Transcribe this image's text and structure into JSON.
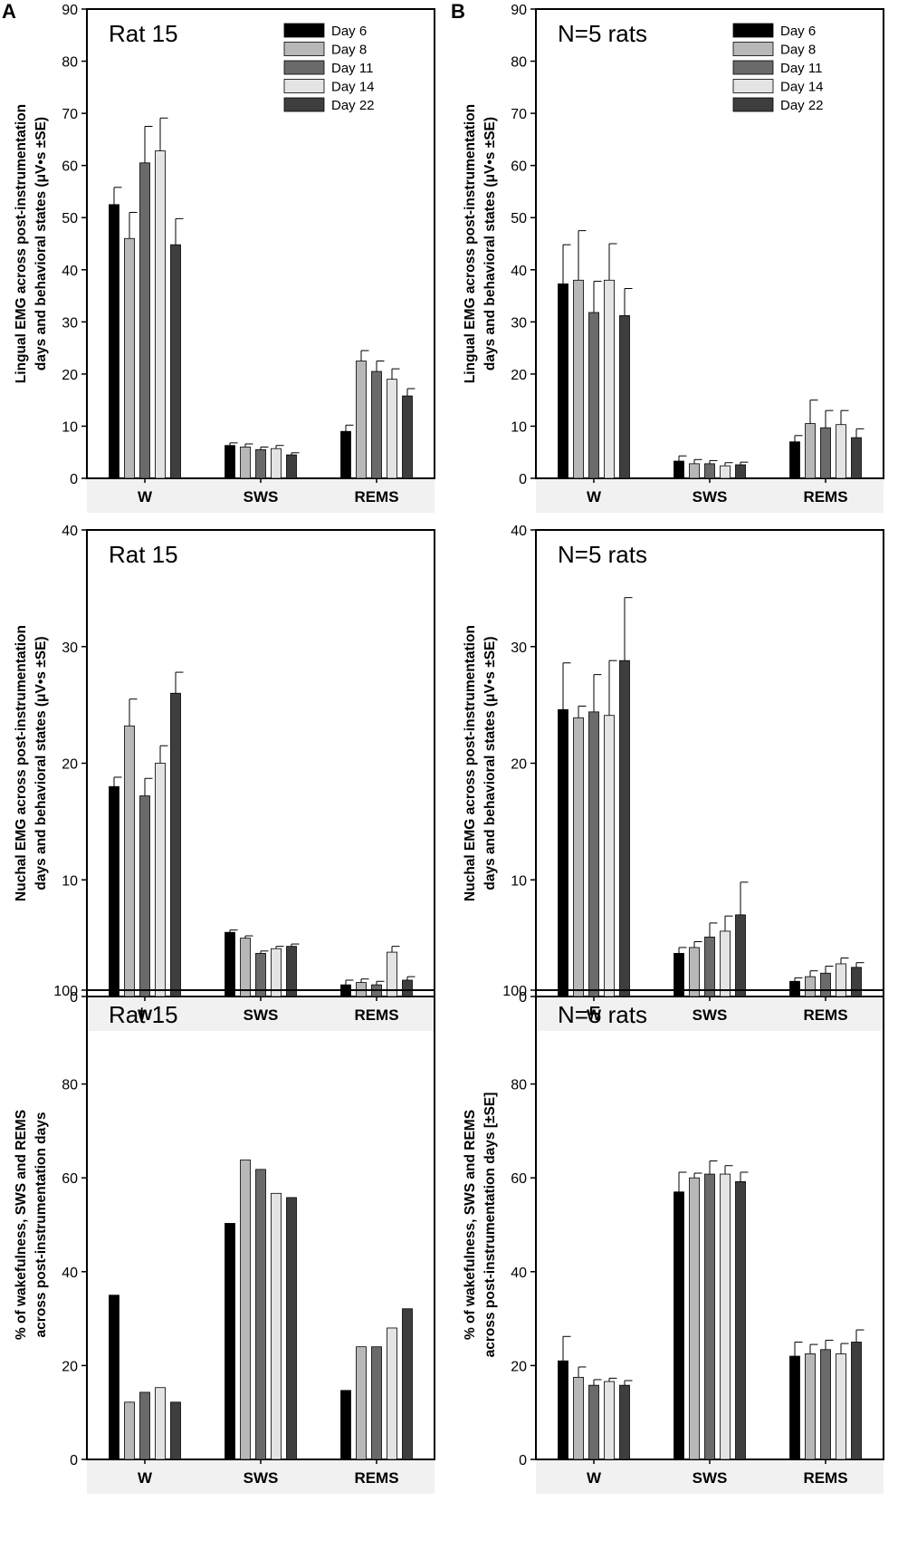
{
  "panel_letters": [
    "A",
    "B"
  ],
  "legend": {
    "entries": [
      "Day 6",
      "Day 8",
      "Day 11",
      "Day 14",
      "Day 22"
    ],
    "colors": [
      "#000000",
      "#b8b8b8",
      "#6a6a6a",
      "#e4e4e4",
      "#3e3e3e"
    ]
  },
  "chart_data": [
    {
      "type": "bar",
      "id": "lingual-rat15",
      "title": "Rat 15",
      "ylabel_line1": "Lingual EMG across post-instrumentation",
      "ylabel_line2": "days and behavioral states (μV•s ±SE)",
      "categories": [
        "W",
        "SWS",
        "REMS"
      ],
      "ylim": [
        0,
        90
      ],
      "yticks": [
        0,
        10,
        20,
        30,
        40,
        50,
        60,
        70,
        80,
        90
      ],
      "legend": true,
      "series": [
        {
          "name": "Day 6",
          "values": [
            52.5,
            6.3,
            9.0
          ],
          "err": [
            3.3,
            0.5,
            1.2
          ]
        },
        {
          "name": "Day 8",
          "values": [
            46.0,
            6.0,
            22.5
          ],
          "err": [
            5.0,
            0.6,
            2.0
          ]
        },
        {
          "name": "Day 11",
          "values": [
            60.5,
            5.5,
            20.5
          ],
          "err": [
            7.0,
            0.5,
            2.0
          ]
        },
        {
          "name": "Day 14",
          "values": [
            62.8,
            5.7,
            19.0
          ],
          "err": [
            6.3,
            0.6,
            2.0
          ]
        },
        {
          "name": "Day 22",
          "values": [
            44.8,
            4.5,
            15.8
          ],
          "err": [
            5.0,
            0.4,
            1.4
          ]
        }
      ]
    },
    {
      "type": "bar",
      "id": "lingual-n5",
      "title": "N=5 rats",
      "ylabel_line1": "Lingual EMG across post-instrumentation",
      "ylabel_line2": "days and behavioral states (μV•s ±SE)",
      "categories": [
        "W",
        "SWS",
        "REMS"
      ],
      "ylim": [
        0,
        90
      ],
      "yticks": [
        0,
        10,
        20,
        30,
        40,
        50,
        60,
        70,
        80,
        90
      ],
      "legend": true,
      "series": [
        {
          "name": "Day 6",
          "values": [
            37.3,
            3.3,
            7.0
          ],
          "err": [
            7.5,
            1.0,
            1.2
          ]
        },
        {
          "name": "Day 8",
          "values": [
            38.0,
            2.8,
            10.5
          ],
          "err": [
            9.5,
            0.8,
            4.5
          ]
        },
        {
          "name": "Day 11",
          "values": [
            31.8,
            2.8,
            9.7
          ],
          "err": [
            6.0,
            0.6,
            3.3
          ]
        },
        {
          "name": "Day 14",
          "values": [
            38.0,
            2.4,
            10.3
          ],
          "err": [
            7.0,
            0.6,
            2.7
          ]
        },
        {
          "name": "Day 22",
          "values": [
            31.2,
            2.6,
            7.8
          ],
          "err": [
            5.2,
            0.5,
            1.7
          ]
        }
      ]
    },
    {
      "type": "bar",
      "id": "nuchal-rat15",
      "title": "Rat 15",
      "ylabel_line1": "Nuchal EMG across post-instrumentation",
      "ylabel_line2": "days and behavioral states (μV•s ±SE)",
      "categories": [
        "W",
        "SWS",
        "REMS"
      ],
      "ylim": [
        0,
        40
      ],
      "yticks": [
        0,
        10,
        20,
        30,
        40
      ],
      "legend": false,
      "series": [
        {
          "name": "Day 6",
          "values": [
            18.0,
            5.5,
            1.0
          ],
          "err": [
            0.8,
            0.2,
            0.4
          ]
        },
        {
          "name": "Day 8",
          "values": [
            23.2,
            5.0,
            1.2
          ],
          "err": [
            2.3,
            0.2,
            0.3
          ]
        },
        {
          "name": "Day 11",
          "values": [
            17.2,
            3.7,
            1.0
          ],
          "err": [
            1.5,
            0.2,
            0.3
          ]
        },
        {
          "name": "Day 14",
          "values": [
            20.0,
            4.1,
            3.8
          ],
          "err": [
            1.5,
            0.2,
            0.5
          ]
        },
        {
          "name": "Day 22",
          "values": [
            26.0,
            4.3,
            1.4
          ],
          "err": [
            1.8,
            0.2,
            0.3
          ]
        }
      ]
    },
    {
      "type": "bar",
      "id": "nuchal-n5",
      "title": "N=5 rats",
      "ylabel_line1": "Nuchal EMG across post-instrumentation",
      "ylabel_line2": "days and behavioral states (μV•s ±SE)",
      "categories": [
        "W",
        "SWS",
        "REMS"
      ],
      "ylim": [
        0,
        40
      ],
      "yticks": [
        0,
        10,
        20,
        30,
        40
      ],
      "legend": false,
      "series": [
        {
          "name": "Day 6",
          "values": [
            24.6,
            3.7,
            1.3
          ],
          "err": [
            4.0,
            0.5,
            0.3
          ]
        },
        {
          "name": "Day 8",
          "values": [
            23.9,
            4.2,
            1.7
          ],
          "err": [
            1.0,
            0.5,
            0.5
          ]
        },
        {
          "name": "Day 11",
          "values": [
            24.4,
            5.1,
            2.0
          ],
          "err": [
            3.2,
            1.2,
            0.6
          ]
        },
        {
          "name": "Day 14",
          "values": [
            24.1,
            5.6,
            2.8
          ],
          "err": [
            4.7,
            1.3,
            0.5
          ]
        },
        {
          "name": "Day 22",
          "values": [
            28.8,
            7.0,
            2.5
          ],
          "err": [
            5.4,
            2.8,
            0.4
          ]
        }
      ]
    },
    {
      "type": "bar",
      "id": "pct-rat15",
      "title": "Rat 15",
      "ylabel_line1": "% of wakefulness, SWS and REMS",
      "ylabel_line2": "across post-instrumentation days",
      "categories": [
        "W",
        "SWS",
        "REMS"
      ],
      "ylim": [
        0,
        100
      ],
      "yticks": [
        0,
        20,
        40,
        60,
        80,
        100
      ],
      "legend": false,
      "series": [
        {
          "name": "Day 6",
          "values": [
            35.0,
            50.3,
            14.7
          ],
          "err": [
            0,
            0,
            0
          ]
        },
        {
          "name": "Day 8",
          "values": [
            12.2,
            63.8,
            24.0
          ],
          "err": [
            0,
            0,
            0
          ]
        },
        {
          "name": "Day 11",
          "values": [
            14.3,
            61.8,
            24.0
          ],
          "err": [
            0,
            0,
            0
          ]
        },
        {
          "name": "Day 14",
          "values": [
            15.3,
            56.7,
            28.0
          ],
          "err": [
            0,
            0,
            0
          ]
        },
        {
          "name": "Day 22",
          "values": [
            12.2,
            55.8,
            32.1
          ],
          "err": [
            0,
            0,
            0
          ]
        }
      ]
    },
    {
      "type": "bar",
      "id": "pct-n5",
      "title": "N=5 rats",
      "ylabel_line1": "% of wakefulness, SWS and REMS",
      "ylabel_line2": "across post-instrumentation days  [±SE]",
      "categories": [
        "W",
        "SWS",
        "REMS"
      ],
      "ylim": [
        0,
        100
      ],
      "yticks": [
        0,
        20,
        40,
        60,
        80,
        100
      ],
      "legend": false,
      "series": [
        {
          "name": "Day 6",
          "values": [
            21.0,
            57.0,
            22.0
          ],
          "err": [
            5.2,
            4.2,
            3.0
          ]
        },
        {
          "name": "Day 8",
          "values": [
            17.5,
            60.0,
            22.5
          ],
          "err": [
            2.2,
            1.0,
            2.0
          ]
        },
        {
          "name": "Day 11",
          "values": [
            15.8,
            60.8,
            23.4
          ],
          "err": [
            1.2,
            2.8,
            2.0
          ]
        },
        {
          "name": "Day 14",
          "values": [
            16.6,
            60.8,
            22.5
          ],
          "err": [
            0.7,
            1.8,
            2.2
          ]
        },
        {
          "name": "Day 22",
          "values": [
            15.8,
            59.2,
            25.0
          ],
          "err": [
            1.0,
            2.0,
            2.6
          ]
        }
      ]
    }
  ]
}
